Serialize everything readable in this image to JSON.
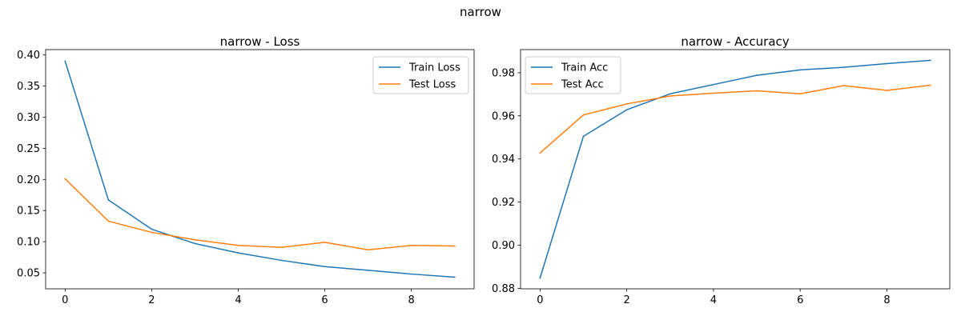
{
  "figure": {
    "suptitle": "narrow"
  },
  "chart_data": [
    {
      "type": "line",
      "title": "narrow - Loss",
      "xlabel": "",
      "ylabel": "",
      "x": [
        0,
        1,
        2,
        3,
        4,
        5,
        6,
        7,
        8,
        9
      ],
      "xlim": [
        -0.45,
        9.45
      ],
      "ylim": [
        0.0243,
        0.4086
      ],
      "xticks": [
        0,
        2,
        4,
        6,
        8
      ],
      "xtick_labels": [
        "0",
        "2",
        "4",
        "6",
        "8"
      ],
      "yticks": [
        0.05,
        0.1,
        0.15,
        0.2,
        0.25,
        0.3,
        0.35,
        0.4
      ],
      "ytick_labels": [
        "0.05",
        "0.10",
        "0.15",
        "0.20",
        "0.25",
        "0.30",
        "0.35",
        "0.40"
      ],
      "grid": false,
      "legend": "top-right",
      "series": [
        {
          "name": "Train Loss",
          "color": "#1f77b4",
          "values": [
            0.39,
            0.167,
            0.12,
            0.097,
            0.082,
            0.07,
            0.06,
            0.054,
            0.048,
            0.043
          ]
        },
        {
          "name": "Test Loss",
          "color": "#ff7f0e",
          "values": [
            0.201,
            0.133,
            0.115,
            0.103,
            0.094,
            0.091,
            0.099,
            0.087,
            0.094,
            0.093
          ]
        }
      ]
    },
    {
      "type": "line",
      "title": "narrow - Accuracy",
      "xlabel": "",
      "ylabel": "",
      "x": [
        0,
        1,
        2,
        3,
        4,
        5,
        6,
        7,
        8,
        9
      ],
      "xlim": [
        -0.45,
        9.45
      ],
      "ylim": [
        0.8798,
        0.9907
      ],
      "xticks": [
        0,
        2,
        4,
        6,
        8
      ],
      "xtick_labels": [
        "0",
        "2",
        "4",
        "6",
        "8"
      ],
      "yticks": [
        0.88,
        0.9,
        0.92,
        0.94,
        0.96,
        0.98
      ],
      "ytick_labels": [
        "0.88",
        "0.90",
        "0.92",
        "0.94",
        "0.96",
        "0.98"
      ],
      "grid": false,
      "legend": "top-left",
      "series": [
        {
          "name": "Train Acc",
          "color": "#1f77b4",
          "values": [
            0.8848,
            0.9505,
            0.9628,
            0.9702,
            0.9745,
            0.9788,
            0.9813,
            0.9825,
            0.9842,
            0.9857
          ]
        },
        {
          "name": "Test Acc",
          "color": "#ff7f0e",
          "values": [
            0.9428,
            0.9604,
            0.9655,
            0.9692,
            0.9705,
            0.9716,
            0.9702,
            0.974,
            0.9718,
            0.9742
          ]
        }
      ]
    }
  ]
}
